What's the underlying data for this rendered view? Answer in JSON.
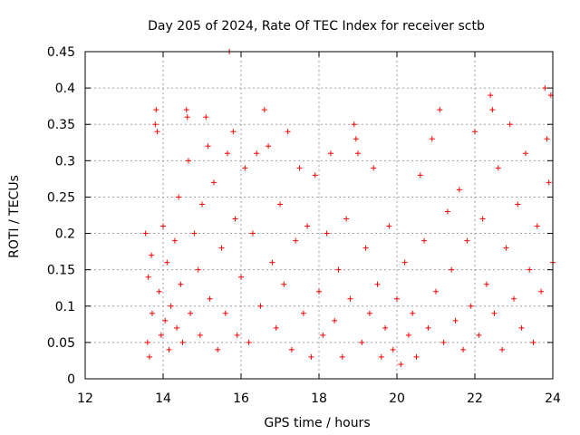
{
  "chart_data": {
    "type": "scatter",
    "title": "Day 205 of 2024, Rate Of TEC Index for receiver sctb",
    "xlabel": "GPS time / hours",
    "ylabel": "ROTI / TECUs",
    "xlim": [
      12,
      24
    ],
    "ylim": [
      0,
      0.45
    ],
    "xticks": [
      12,
      14,
      16,
      18,
      20,
      22,
      24
    ],
    "xtick_labels": [
      "12",
      "14",
      "16",
      "18",
      "20",
      "22",
      "24"
    ],
    "yticks": [
      0,
      0.05,
      0.1,
      0.15,
      0.2,
      0.25,
      0.3,
      0.35,
      0.4,
      0.45
    ],
    "ytick_labels": [
      "0",
      "0.05",
      "0.1",
      "0.15",
      "0.2",
      "0.25",
      "0.3",
      "0.35",
      "0.4",
      "0.45"
    ],
    "grid": true,
    "marker": "+",
    "color": "#ff0000",
    "series": [
      {
        "name": "ROTI",
        "points": [
          [
            13.55,
            0.2
          ],
          [
            13.6,
            0.05
          ],
          [
            13.62,
            0.14
          ],
          [
            13.65,
            0.03
          ],
          [
            13.7,
            0.17
          ],
          [
            13.72,
            0.09
          ],
          [
            13.8,
            0.35
          ],
          [
            13.82,
            0.37
          ],
          [
            13.85,
            0.34
          ],
          [
            13.9,
            0.12
          ],
          [
            13.95,
            0.06
          ],
          [
            14.0,
            0.21
          ],
          [
            14.05,
            0.08
          ],
          [
            14.1,
            0.16
          ],
          [
            14.15,
            0.04
          ],
          [
            14.2,
            0.1
          ],
          [
            14.3,
            0.19
          ],
          [
            14.35,
            0.07
          ],
          [
            14.4,
            0.25
          ],
          [
            14.45,
            0.13
          ],
          [
            14.5,
            0.05
          ],
          [
            14.6,
            0.37
          ],
          [
            14.62,
            0.36
          ],
          [
            14.65,
            0.3
          ],
          [
            14.7,
            0.09
          ],
          [
            14.8,
            0.2
          ],
          [
            14.9,
            0.15
          ],
          [
            14.95,
            0.06
          ],
          [
            15.0,
            0.24
          ],
          [
            15.1,
            0.36
          ],
          [
            15.15,
            0.32
          ],
          [
            15.2,
            0.11
          ],
          [
            15.3,
            0.27
          ],
          [
            15.4,
            0.04
          ],
          [
            15.5,
            0.18
          ],
          [
            15.6,
            0.09
          ],
          [
            15.65,
            0.31
          ],
          [
            15.7,
            0.45
          ],
          [
            15.8,
            0.34
          ],
          [
            15.85,
            0.22
          ],
          [
            15.9,
            0.06
          ],
          [
            16.0,
            0.14
          ],
          [
            16.1,
            0.29
          ],
          [
            16.2,
            0.05
          ],
          [
            16.3,
            0.2
          ],
          [
            16.4,
            0.31
          ],
          [
            16.5,
            0.1
          ],
          [
            16.6,
            0.37
          ],
          [
            16.7,
            0.32
          ],
          [
            16.8,
            0.16
          ],
          [
            16.9,
            0.07
          ],
          [
            17.0,
            0.24
          ],
          [
            17.1,
            0.13
          ],
          [
            17.2,
            0.34
          ],
          [
            17.3,
            0.04
          ],
          [
            17.4,
            0.19
          ],
          [
            17.5,
            0.29
          ],
          [
            17.6,
            0.09
          ],
          [
            17.7,
            0.21
          ],
          [
            17.8,
            0.03
          ],
          [
            17.9,
            0.28
          ],
          [
            18.0,
            0.12
          ],
          [
            18.1,
            0.06
          ],
          [
            18.2,
            0.2
          ],
          [
            18.3,
            0.31
          ],
          [
            18.4,
            0.08
          ],
          [
            18.5,
            0.15
          ],
          [
            18.6,
            0.03
          ],
          [
            18.7,
            0.22
          ],
          [
            18.8,
            0.11
          ],
          [
            18.9,
            0.35
          ],
          [
            18.95,
            0.33
          ],
          [
            19.0,
            0.31
          ],
          [
            19.1,
            0.05
          ],
          [
            19.2,
            0.18
          ],
          [
            19.3,
            0.09
          ],
          [
            19.4,
            0.29
          ],
          [
            19.5,
            0.13
          ],
          [
            19.6,
            0.03
          ],
          [
            19.7,
            0.07
          ],
          [
            19.8,
            0.21
          ],
          [
            19.9,
            0.04
          ],
          [
            20.0,
            0.11
          ],
          [
            20.1,
            0.02
          ],
          [
            20.2,
            0.16
          ],
          [
            20.3,
            0.06
          ],
          [
            20.4,
            0.09
          ],
          [
            20.5,
            0.03
          ],
          [
            20.6,
            0.28
          ],
          [
            20.7,
            0.19
          ],
          [
            20.8,
            0.07
          ],
          [
            20.9,
            0.33
          ],
          [
            21.0,
            0.12
          ],
          [
            21.1,
            0.37
          ],
          [
            21.2,
            0.05
          ],
          [
            21.3,
            0.23
          ],
          [
            21.4,
            0.15
          ],
          [
            21.5,
            0.08
          ],
          [
            21.6,
            0.26
          ],
          [
            21.7,
            0.04
          ],
          [
            21.8,
            0.19
          ],
          [
            21.9,
            0.1
          ],
          [
            22.0,
            0.34
          ],
          [
            22.1,
            0.06
          ],
          [
            22.2,
            0.22
          ],
          [
            22.3,
            0.13
          ],
          [
            22.4,
            0.39
          ],
          [
            22.45,
            0.37
          ],
          [
            22.5,
            0.09
          ],
          [
            22.6,
            0.29
          ],
          [
            22.7,
            0.04
          ],
          [
            22.8,
            0.18
          ],
          [
            22.9,
            0.35
          ],
          [
            23.0,
            0.11
          ],
          [
            23.1,
            0.24
          ],
          [
            23.2,
            0.07
          ],
          [
            23.3,
            0.31
          ],
          [
            23.4,
            0.15
          ],
          [
            23.5,
            0.05
          ],
          [
            23.6,
            0.21
          ],
          [
            23.7,
            0.12
          ],
          [
            23.8,
            0.4
          ],
          [
            23.85,
            0.33
          ],
          [
            23.9,
            0.27
          ],
          [
            23.95,
            0.39
          ],
          [
            24.0,
            0.16
          ]
        ]
      }
    ]
  }
}
